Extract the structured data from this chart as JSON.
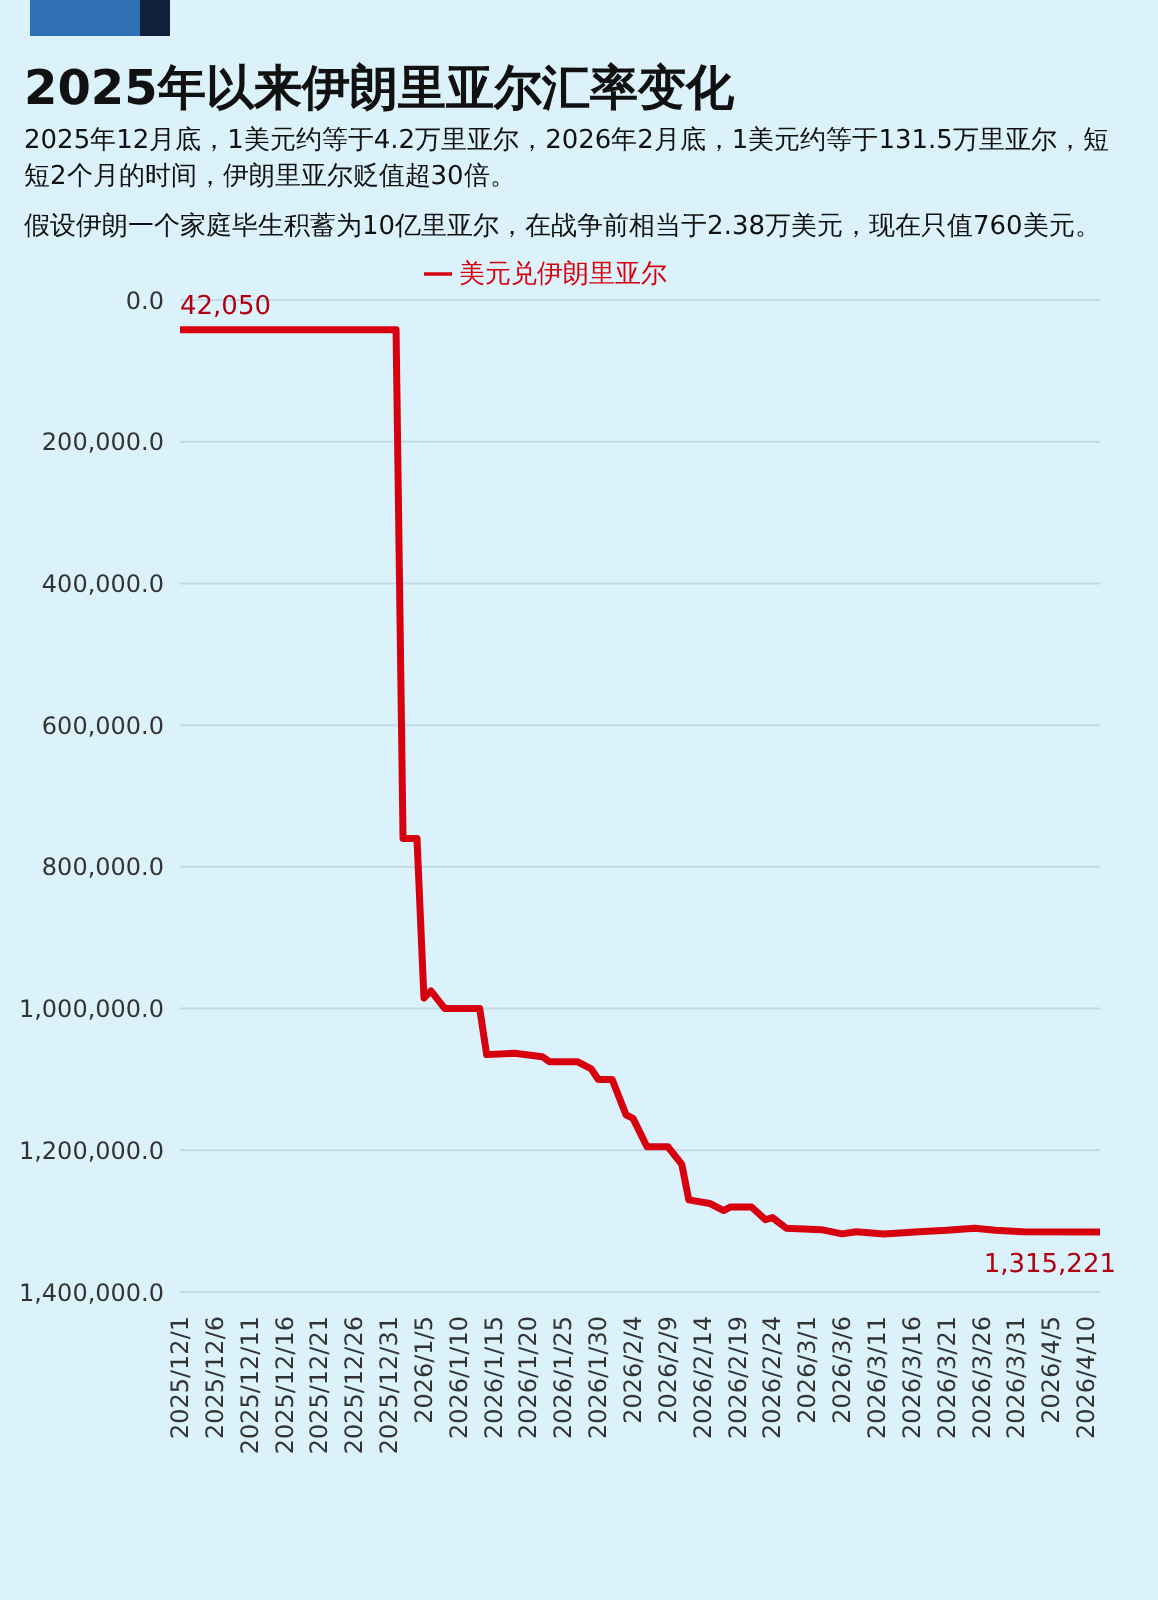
{
  "chart_data": {
    "type": "line",
    "title": "2025年以来伊朗里亚尔汇率变化",
    "subtitle": "2025年12月底，1美元约等于4.2万里亚尔，2026年2月底，1美元约等于131.5万里亚尔，短短2个月的时间，伊朗里亚尔贬值超30倍。",
    "annotations": [
      "假设伊朗一个家庭毕生积蓄为10亿里亚尔，在战争前相当于2.38万美元，现在只值760美元。"
    ],
    "x": [
      "2025-12-01",
      "2026-01-01",
      "2026-01-02",
      "2026-01-04",
      "2026-01-05",
      "2026-01-06",
      "2026-01-08",
      "2026-01-13",
      "2026-01-14",
      "2026-01-18",
      "2026-01-22",
      "2026-01-23",
      "2026-01-27",
      "2026-01-29",
      "2026-01-30",
      "2026-02-01",
      "2026-02-03",
      "2026-02-04",
      "2026-02-06",
      "2026-02-09",
      "2026-02-11",
      "2026-02-12",
      "2026-02-15",
      "2026-02-17",
      "2026-02-18",
      "2026-02-21",
      "2026-02-23",
      "2026-02-24",
      "2026-02-26",
      "2026-03-03",
      "2026-03-06",
      "2026-03-08",
      "2026-03-12",
      "2026-03-17",
      "2026-03-21",
      "2026-03-25",
      "2026-03-28",
      "2026-04-01",
      "2026-04-12"
    ],
    "series": [
      {
        "name": "美元兑伊朗里亚尔",
        "color": "#d7000f",
        "values": [
          42050,
          42050,
          760000,
          760000,
          985000,
          975000,
          1000000,
          1000000,
          1065000,
          1063000,
          1068000,
          1075000,
          1075000,
          1085000,
          1100000,
          1100000,
          1150000,
          1155000,
          1195000,
          1195000,
          1220000,
          1270000,
          1275000,
          1285000,
          1280000,
          1280000,
          1298000,
          1295000,
          1310000,
          1312000,
          1318000,
          1315000,
          1318000,
          1315000,
          1313000,
          1310000,
          1313000,
          1315000,
          1315221
        ],
        "value_labels": [
          "42,050",
          null,
          null,
          null,
          null,
          null,
          null,
          null,
          null,
          null,
          null,
          null,
          null,
          null,
          null,
          null,
          null,
          null,
          null,
          null,
          null,
          null,
          null,
          null,
          null,
          null,
          null,
          null,
          null,
          null,
          null,
          null,
          null,
          null,
          null,
          null,
          null,
          null,
          "1,315,221"
        ]
      }
    ],
    "xlim": [
      "2025-12-01",
      "2026-04-12"
    ],
    "xticks": [
      {
        "value": "2025-12-01",
        "label": "2025/12/1"
      },
      {
        "value": "2025-12-06",
        "label": "2025/12/6"
      },
      {
        "value": "2025-12-11",
        "label": "2025/12/11"
      },
      {
        "value": "2025-12-16",
        "label": "2025/12/16"
      },
      {
        "value": "2025-12-21",
        "label": "2025/12/21"
      },
      {
        "value": "2025-12-26",
        "label": "2025/12/26"
      },
      {
        "value": "2025-12-31",
        "label": "2025/12/31"
      },
      {
        "value": "2026-01-05",
        "label": "2026/1/5"
      },
      {
        "value": "2026-01-10",
        "label": "2026/1/10"
      },
      {
        "value": "2026-01-15",
        "label": "2026/1/15"
      },
      {
        "value": "2026-01-20",
        "label": "2026/1/20"
      },
      {
        "value": "2026-01-25",
        "label": "2026/1/25"
      },
      {
        "value": "2026-01-30",
        "label": "2026/1/30"
      },
      {
        "value": "2026-02-04",
        "label": "2026/2/4"
      },
      {
        "value": "2026-02-09",
        "label": "2026/2/9"
      },
      {
        "value": "2026-02-14",
        "label": "2026/2/14"
      },
      {
        "value": "2026-02-19",
        "label": "2026/2/19"
      },
      {
        "value": "2026-02-24",
        "label": "2026/2/24"
      },
      {
        "value": "2026-03-01",
        "label": "2026/3/1"
      },
      {
        "value": "2026-03-06",
        "label": "2026/3/6"
      },
      {
        "value": "2026-03-11",
        "label": "2026/3/11"
      },
      {
        "value": "2026-03-16",
        "label": "2026/3/16"
      },
      {
        "value": "2026-03-21",
        "label": "2026/3/21"
      },
      {
        "value": "2026-03-26",
        "label": "2026/3/26"
      },
      {
        "value": "2026-03-31",
        "label": "2026/3/31"
      },
      {
        "value": "2026-04-05",
        "label": "2026/4/5"
      },
      {
        "value": "2026-04-10",
        "label": "2026/4/10"
      }
    ],
    "ylim": [
      1400000,
      0
    ],
    "yticks": [
      {
        "value": 0,
        "label": "0.0"
      },
      {
        "value": 200000,
        "label": "200,000.0"
      },
      {
        "value": 400000,
        "label": "400,000.0"
      },
      {
        "value": 600000,
        "label": "600,000.0"
      },
      {
        "value": 800000,
        "label": "800,000.0"
      },
      {
        "value": 1000000,
        "label": "1,000,000.0"
      },
      {
        "value": 1200000,
        "label": "1,200,000.0"
      },
      {
        "value": 1400000,
        "label": "1,400,000.0"
      }
    ],
    "grid": "y",
    "legend": "top",
    "marker": "none",
    "line_style": "solid"
  }
}
